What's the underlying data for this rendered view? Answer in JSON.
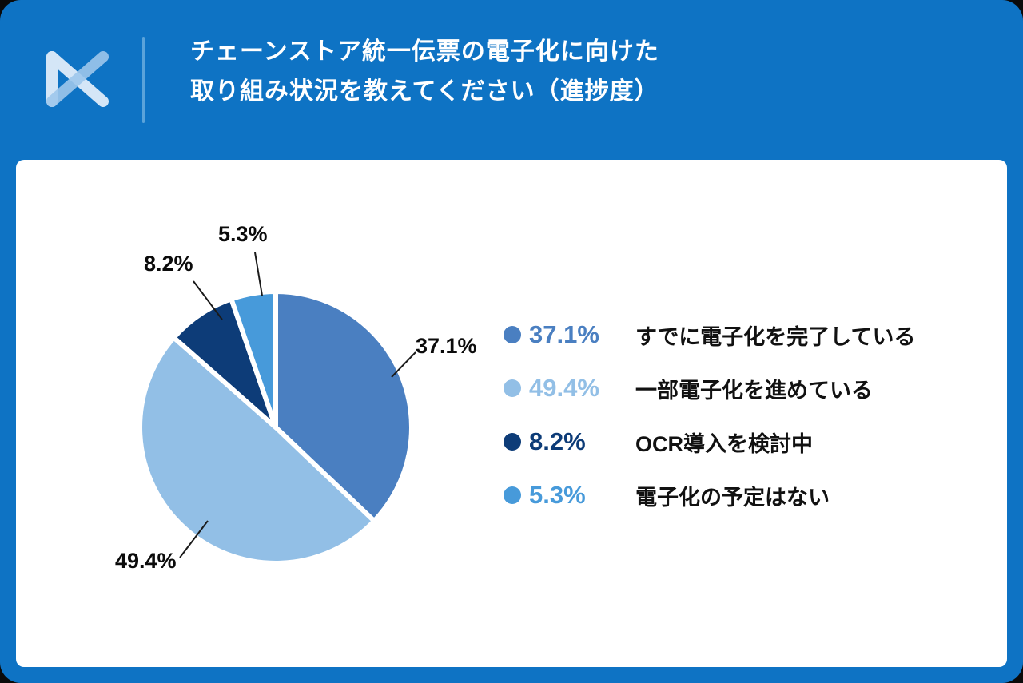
{
  "header": {
    "title_line1": "チェーンストア統一伝票の電子化に向けた",
    "title_line2": "取り組み状況を教えてください（進捗度）"
  },
  "theme": {
    "background": "#0e73c4",
    "card": "#ffffff",
    "divider": "#5aa3da",
    "leader_line": "#1a1a1a",
    "logo_light": "#d4e6f7",
    "logo_mid": "#9ec7ec"
  },
  "chart_data": {
    "type": "pie",
    "title": "チェーンストア統一伝票の電子化に向けた 取り組み状況を教えてください（進捗度）",
    "start_angle_deg": 0,
    "direction": "clockwise",
    "legend_position": "right",
    "slices": [
      {
        "label": "すでに電子化を完了している",
        "value": 37.1,
        "display": "37.1%",
        "color": "#4a7fc1"
      },
      {
        "label": "一部電子化を進めている",
        "value": 49.4,
        "display": "49.4%",
        "color": "#92bfe6"
      },
      {
        "label": "OCR導入を検討中",
        "value": 8.2,
        "display": "8.2%",
        "color": "#0d3c78"
      },
      {
        "label": "電子化の予定はない",
        "value": 5.3,
        "display": "5.3%",
        "color": "#479ada"
      }
    ]
  }
}
